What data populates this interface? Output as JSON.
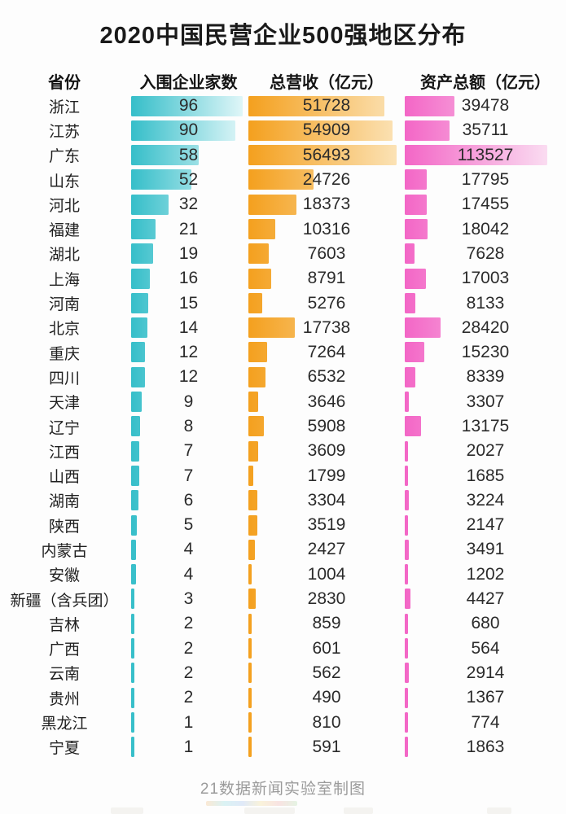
{
  "title": "2020中国民营企业500强地区分布",
  "footer": "21数据新闻实验室制图",
  "columns": {
    "province": "省份",
    "enterprises": "入围企业家数",
    "revenue": "总营收（亿元）",
    "assets": "资产总额（亿元）"
  },
  "colors": {
    "enterprises_bar_start": "#35BEC9",
    "enterprises_bar_end": "#DFF6F8",
    "revenue_bar_start": "#F4A01E",
    "revenue_bar_end": "#FBE2B5",
    "assets_bar_start": "#F366C6",
    "assets_bar_end": "#FADCF1",
    "title_text": "#1A1A1A",
    "value_text": "#2B2B2B",
    "footer_text": "#9B9B9B"
  },
  "chart_data": {
    "type": "bar",
    "orientation": "horizontal",
    "title": "2020中国民营企业500强地区分布",
    "xlabel": "",
    "ylabel": "省份",
    "grid": false,
    "legend_position": "none",
    "value_labels": "centered-on-column",
    "categories": [
      "浙江",
      "江苏",
      "广东",
      "山东",
      "河北",
      "福建",
      "湖北",
      "上海",
      "河南",
      "北京",
      "重庆",
      "四川",
      "天津",
      "辽宁",
      "江西",
      "山西",
      "湖南",
      "陕西",
      "内蒙古",
      "安徽",
      "新疆（含兵团）",
      "吉林",
      "广西",
      "云南",
      "贵州",
      "黑龙江",
      "宁夏"
    ],
    "series": [
      {
        "name": "入围企业家数",
        "values": [
          96,
          90,
          58,
          52,
          32,
          21,
          19,
          16,
          15,
          14,
          12,
          12,
          9,
          8,
          7,
          7,
          6,
          5,
          4,
          4,
          3,
          2,
          2,
          2,
          2,
          1,
          1
        ]
      },
      {
        "name": "总营收（亿元）",
        "values": [
          51728,
          54909,
          56493,
          24726,
          18373,
          10316,
          7603,
          8791,
          5276,
          17738,
          7264,
          6532,
          3646,
          5908,
          3609,
          1799,
          3304,
          3519,
          2427,
          1004,
          2830,
          859,
          601,
          562,
          490,
          810,
          591
        ]
      },
      {
        "name": "资产总额（亿元）",
        "values": [
          39478,
          35711,
          113527,
          17795,
          17455,
          18042,
          7628,
          17003,
          8133,
          28420,
          15230,
          8339,
          3307,
          13175,
          2027,
          1685,
          3224,
          2147,
          3491,
          1202,
          4427,
          680,
          564,
          2914,
          1367,
          774,
          1863
        ]
      }
    ],
    "source_credit": "21数据新闻实验室制图"
  }
}
